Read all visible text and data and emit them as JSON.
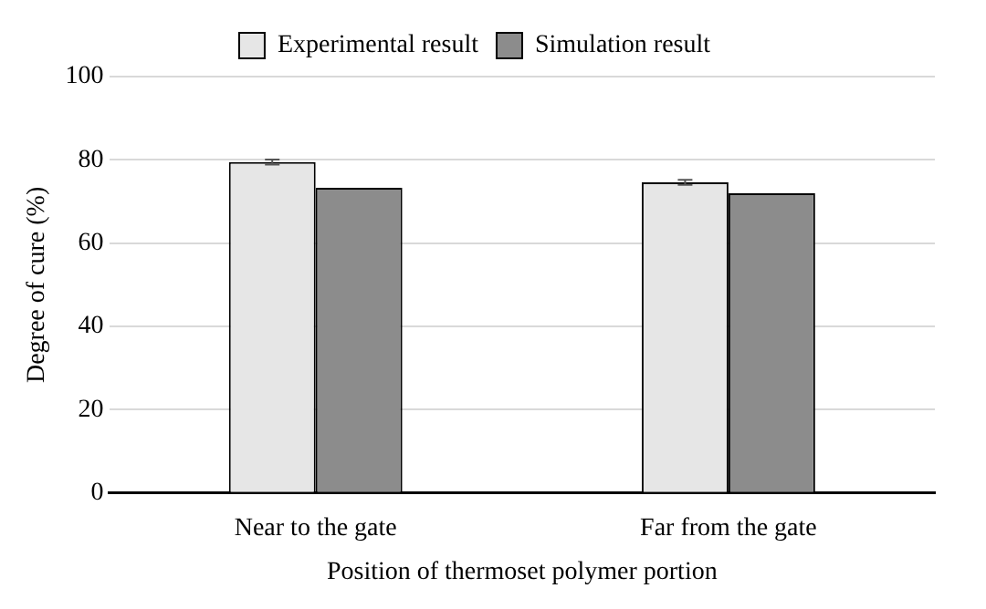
{
  "chart_data": {
    "type": "bar",
    "xlabel": "Position of thermoset polymer portion",
    "ylabel": "Degree of cure (%)",
    "categories": [
      "Near to the gate",
      "Far from the gate"
    ],
    "series": [
      {
        "name": "Experimental result",
        "color": "#e6e6e6",
        "values": [
          79.5,
          74.6
        ],
        "errors": [
          0.6,
          0.6
        ]
      },
      {
        "name": "Simulation result",
        "color": "#8c8c8c",
        "values": [
          73.3,
          72.0
        ]
      }
    ],
    "ylim": [
      0,
      100
    ],
    "yticks": [
      0,
      20,
      40,
      60,
      80,
      100
    ],
    "grid": "y",
    "legend": "top"
  }
}
